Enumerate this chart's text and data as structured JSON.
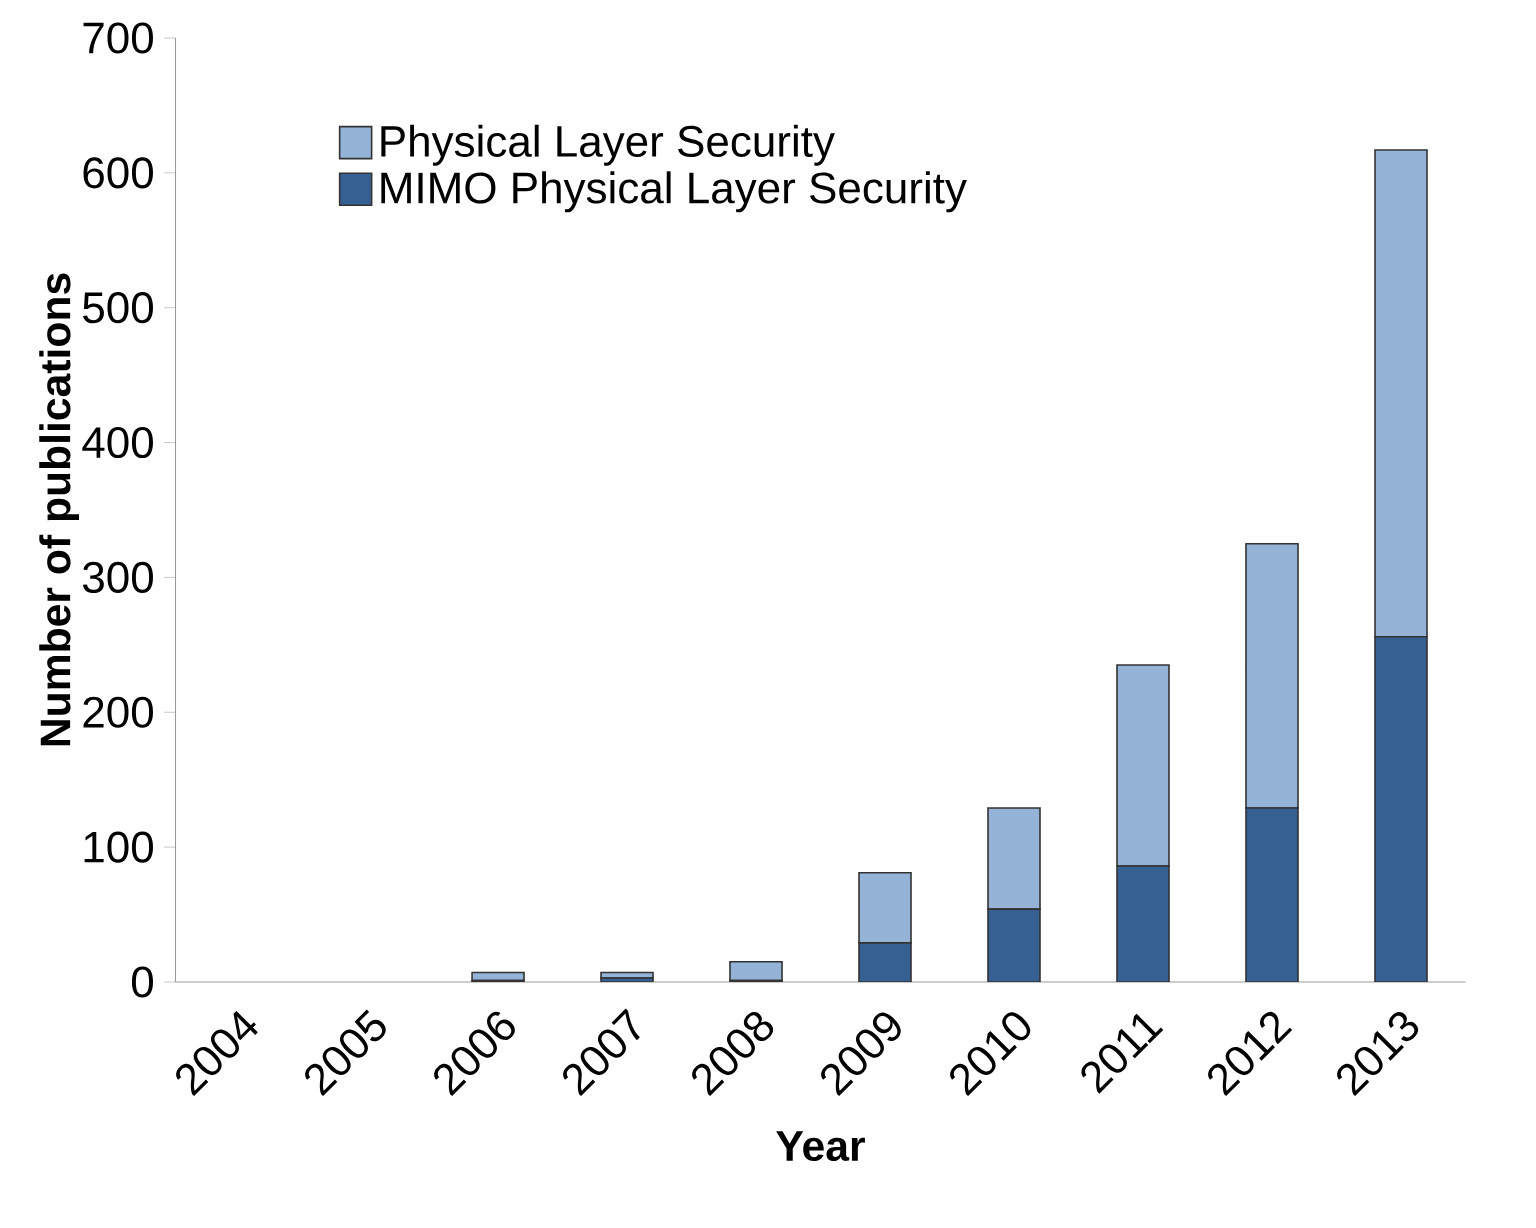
{
  "chart_data": {
    "type": "bar",
    "stacked": true,
    "xlabel": "Year",
    "ylabel": "Number of publications",
    "categories": [
      "2004",
      "2005",
      "2006",
      "2007",
      "2008",
      "2009",
      "2010",
      "2011",
      "2012",
      "2013"
    ],
    "series": [
      {
        "name": "MIMO Physical Layer Security",
        "color": "#376092",
        "values": [
          0,
          0,
          1,
          3,
          1,
          29,
          54,
          86,
          129,
          256
        ]
      },
      {
        "name": "Physical Layer Security",
        "color": "#95b3d7",
        "values": [
          0,
          0,
          6,
          4,
          14,
          52,
          75,
          149,
          196,
          361
        ]
      }
    ],
    "ylim": [
      0,
      700
    ],
    "yticks": [
      0,
      100,
      200,
      300,
      400,
      500,
      600,
      700
    ],
    "grid": false,
    "legend": "top left"
  }
}
